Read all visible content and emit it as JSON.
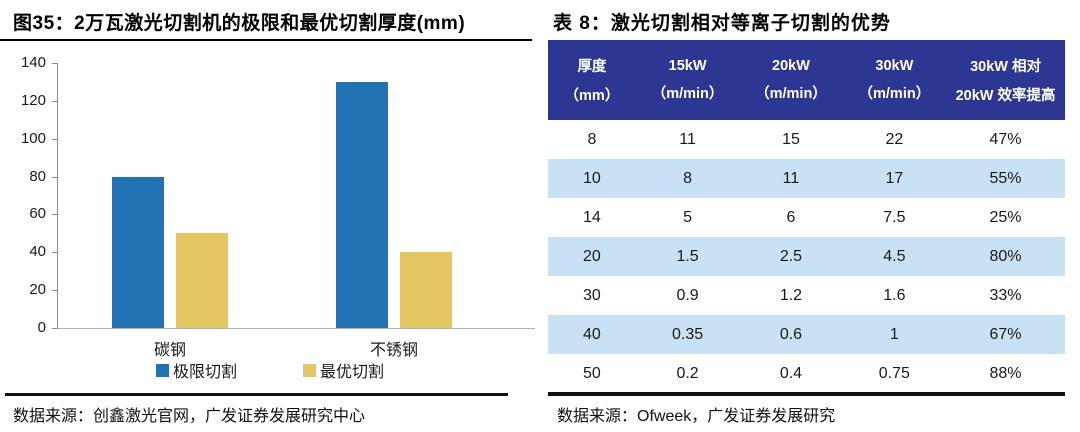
{
  "left_panel": {
    "title": "图35：2万瓦激光切割机的极限和最优切割厚度(mm)",
    "source": "数据来源：创鑫激光官网，广发证券发展研究中心"
  },
  "chart_data": {
    "type": "bar",
    "title": "2万瓦激光切割机的极限和最优切割厚度(mm)",
    "categories": [
      "碳钢",
      "不锈钢"
    ],
    "series": [
      {
        "name": "极限切割",
        "color": "#2173B4",
        "values": [
          80,
          130
        ]
      },
      {
        "name": "最优切割",
        "color": "#E3C662",
        "values": [
          50,
          40
        ]
      }
    ],
    "ylim": [
      0,
      140
    ],
    "ytick_step": 20,
    "grid": false,
    "legend_position": "bottom"
  },
  "right_panel": {
    "title": "表 8：激光切割相对等离子切割的优势",
    "source": "数据来源：Ofweek，广发证券发展研究",
    "table": {
      "colors": {
        "header_bg": "#2D3793",
        "header_text": "#FFFFFF",
        "row_bg": "#FFFFFF",
        "row_alt_bg": "#C9E1F5"
      },
      "col_widths_pct": [
        17,
        20,
        20,
        20,
        23
      ],
      "header": [
        {
          "line1": "厚度",
          "line2": "（mm）"
        },
        {
          "line1": "15kW",
          "line2": "（m/min）"
        },
        {
          "line1": "20kW",
          "line2": "（m/min）"
        },
        {
          "line1": "30kW",
          "line2": "（m/min）"
        },
        {
          "line1": "30kW 相对",
          "line2": "20kW 效率提高"
        }
      ],
      "rows": [
        [
          "8",
          "11",
          "15",
          "22",
          "47%"
        ],
        [
          "10",
          "8",
          "11",
          "17",
          "55%"
        ],
        [
          "14",
          "5",
          "6",
          "7.5",
          "25%"
        ],
        [
          "20",
          "1.5",
          "2.5",
          "4.5",
          "80%"
        ],
        [
          "30",
          "0.9",
          "1.2",
          "1.6",
          "33%"
        ],
        [
          "40",
          "0.35",
          "0.6",
          "1",
          "67%"
        ],
        [
          "50",
          "0.2",
          "0.4",
          "0.75",
          "88%"
        ]
      ]
    }
  }
}
